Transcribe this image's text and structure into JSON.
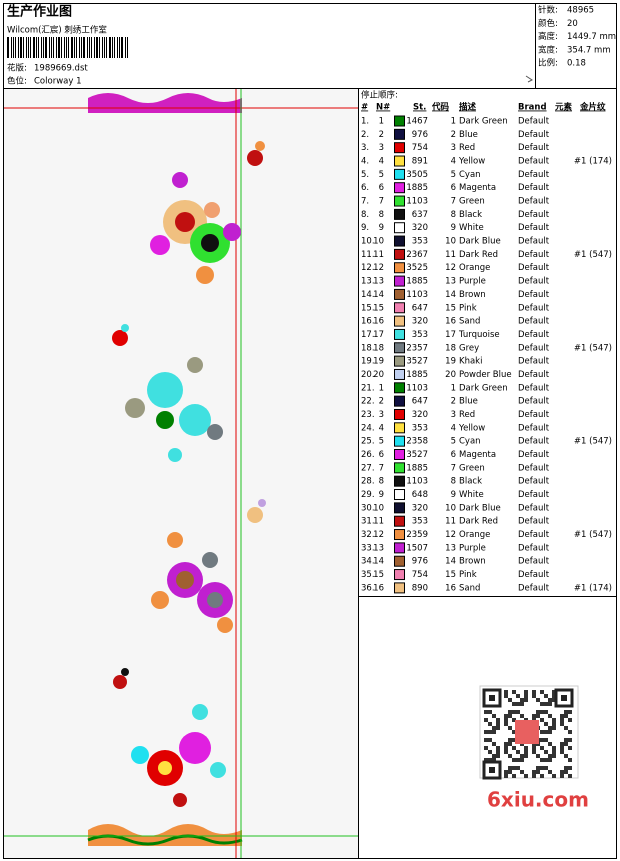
{
  "header": {
    "title": "生产作业图",
    "studio": "Wilcom(汇宸) 刺绣工作室",
    "design_label": "花版:",
    "design": "1989669.dst",
    "colorway_label": "色位:",
    "colorway": "Colorway 1"
  },
  "stats": [
    {
      "label": "针数:",
      "value": "48965"
    },
    {
      "label": "颜色:",
      "value": "20"
    },
    {
      "label": "高度:",
      "value": "1449.7 mm"
    },
    {
      "label": "宽度:",
      "value": "354.7 mm"
    },
    {
      "label": "比例:",
      "value": "0.18"
    }
  ],
  "table": {
    "title": "停止顺序:",
    "columns": [
      "#",
      "N#",
      "St.",
      "代码",
      "描述",
      "Brand",
      "元素",
      "金片纹"
    ],
    "rows": [
      {
        "no": "1.",
        "n": 1,
        "swatch": "#008000",
        "st": 1467,
        "code": 1,
        "desc": "Dark Green",
        "brand": "Default"
      },
      {
        "no": "2.",
        "n": 2,
        "swatch": "#101040",
        "st": 976,
        "code": 2,
        "desc": "Blue",
        "brand": "Default"
      },
      {
        "no": "3.",
        "n": 3,
        "swatch": "#e00000",
        "st": 754,
        "code": 3,
        "desc": "Red",
        "brand": "Default"
      },
      {
        "no": "4.",
        "n": 4,
        "swatch": "#ffe040",
        "st": 891,
        "code": 4,
        "desc": "Yellow",
        "brand": "Default",
        "seq": "#1 (174)"
      },
      {
        "no": "5.",
        "n": 5,
        "swatch": "#20e0f0",
        "st": 3505,
        "code": 5,
        "desc": "Cyan",
        "brand": "Default"
      },
      {
        "no": "6.",
        "n": 6,
        "swatch": "#e020e0",
        "st": 1885,
        "code": 6,
        "desc": "Magenta",
        "brand": "Default"
      },
      {
        "no": "7.",
        "n": 7,
        "swatch": "#30e030",
        "st": 1103,
        "code": 7,
        "desc": "Green",
        "brand": "Default"
      },
      {
        "no": "8.",
        "n": 8,
        "swatch": "#101010",
        "st": 637,
        "code": 8,
        "desc": "Black",
        "brand": "Default"
      },
      {
        "no": "9.",
        "n": 9,
        "swatch": "#ffffff",
        "st": 320,
        "code": 9,
        "desc": "White",
        "brand": "Default"
      },
      {
        "no": "10.",
        "n": 10,
        "swatch": "#101030",
        "st": 353,
        "code": 10,
        "desc": "Dark Blue",
        "brand": "Default"
      },
      {
        "no": "11.",
        "n": 11,
        "swatch": "#c01010",
        "st": 2367,
        "code": 11,
        "desc": "Dark Red",
        "brand": "Default",
        "seq": "#1 (547)"
      },
      {
        "no": "12.",
        "n": 12,
        "swatch": "#f09040",
        "st": 3525,
        "code": 12,
        "desc": "Orange",
        "brand": "Default"
      },
      {
        "no": "13.",
        "n": 13,
        "swatch": "#c020d0",
        "st": 1885,
        "code": 13,
        "desc": "Purple",
        "brand": "Default"
      },
      {
        "no": "14.",
        "n": 14,
        "swatch": "#a06030",
        "st": 1103,
        "code": 14,
        "desc": "Brown",
        "brand": "Default"
      },
      {
        "no": "15.",
        "n": 15,
        "swatch": "#f080b0",
        "st": 647,
        "code": 15,
        "desc": "Pink",
        "brand": "Default"
      },
      {
        "no": "16.",
        "n": 16,
        "swatch": "#f0c080",
        "st": 320,
        "code": 16,
        "desc": "Sand",
        "brand": "Default"
      },
      {
        "no": "17.",
        "n": 17,
        "swatch": "#40e0e0",
        "st": 353,
        "code": 17,
        "desc": "Turquoise",
        "brand": "Default"
      },
      {
        "no": "18.",
        "n": 18,
        "swatch": "#707a80",
        "st": 2357,
        "code": 18,
        "desc": "Grey",
        "brand": "Default",
        "seq": "#1 (547)"
      },
      {
        "no": "19.",
        "n": 19,
        "swatch": "#9a9a80",
        "st": 3527,
        "code": 19,
        "desc": "Khaki",
        "brand": "Default"
      },
      {
        "no": "20.",
        "n": 20,
        "swatch": "#c0d0f0",
        "st": 1885,
        "code": 20,
        "desc": "Powder Blue",
        "brand": "Default"
      },
      {
        "no": "21.",
        "n": 1,
        "swatch": "#008000",
        "st": 1103,
        "code": 1,
        "desc": "Dark Green",
        "brand": "Default"
      },
      {
        "no": "22.",
        "n": 2,
        "swatch": "#101040",
        "st": 647,
        "code": 2,
        "desc": "Blue",
        "brand": "Default"
      },
      {
        "no": "23.",
        "n": 3,
        "swatch": "#e00000",
        "st": 320,
        "code": 3,
        "desc": "Red",
        "brand": "Default"
      },
      {
        "no": "24.",
        "n": 4,
        "swatch": "#ffe040",
        "st": 353,
        "code": 4,
        "desc": "Yellow",
        "brand": "Default"
      },
      {
        "no": "25.",
        "n": 5,
        "swatch": "#20e0f0",
        "st": 2358,
        "code": 5,
        "desc": "Cyan",
        "brand": "Default",
        "seq": "#1 (547)"
      },
      {
        "no": "26.",
        "n": 6,
        "swatch": "#e020e0",
        "st": 3527,
        "code": 6,
        "desc": "Magenta",
        "brand": "Default"
      },
      {
        "no": "27.",
        "n": 7,
        "swatch": "#30e030",
        "st": 1885,
        "code": 7,
        "desc": "Green",
        "brand": "Default"
      },
      {
        "no": "28.",
        "n": 8,
        "swatch": "#101010",
        "st": 1103,
        "code": 8,
        "desc": "Black",
        "brand": "Default"
      },
      {
        "no": "29.",
        "n": 9,
        "swatch": "#ffffff",
        "st": 648,
        "code": 9,
        "desc": "White",
        "brand": "Default"
      },
      {
        "no": "30.",
        "n": 10,
        "swatch": "#101030",
        "st": 320,
        "code": 10,
        "desc": "Dark Blue",
        "brand": "Default"
      },
      {
        "no": "31.",
        "n": 11,
        "swatch": "#c01010",
        "st": 353,
        "code": 11,
        "desc": "Dark Red",
        "brand": "Default"
      },
      {
        "no": "32.",
        "n": 12,
        "swatch": "#f09040",
        "st": 2359,
        "code": 12,
        "desc": "Orange",
        "brand": "Default",
        "seq": "#1 (547)"
      },
      {
        "no": "33.",
        "n": 13,
        "swatch": "#c020d0",
        "st": 1507,
        "code": 13,
        "desc": "Purple",
        "brand": "Default"
      },
      {
        "no": "34.",
        "n": 14,
        "swatch": "#a06030",
        "st": 976,
        "code": 14,
        "desc": "Brown",
        "brand": "Default"
      },
      {
        "no": "35.",
        "n": 15,
        "swatch": "#f080b0",
        "st": 754,
        "code": 15,
        "desc": "Pink",
        "brand": "Default"
      },
      {
        "no": "36.",
        "n": 16,
        "swatch": "#f0c080",
        "st": 890,
        "code": 16,
        "desc": "Sand",
        "brand": "Default",
        "seq": "#1 (174)"
      }
    ]
  },
  "watermark": "6xiu.com"
}
